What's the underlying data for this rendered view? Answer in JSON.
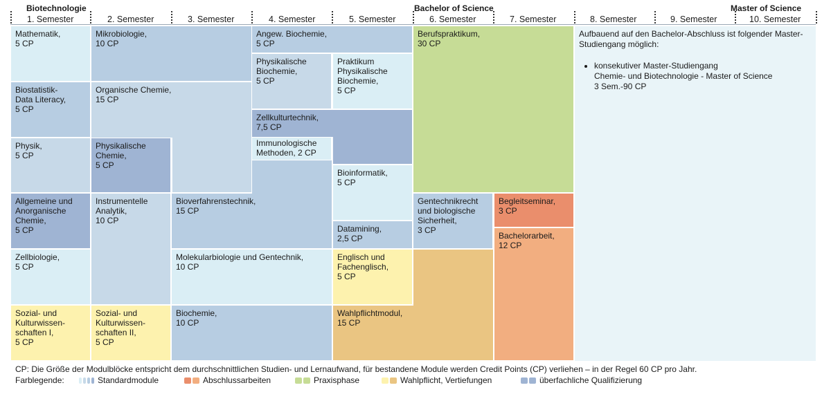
{
  "header": {
    "biotech": "Biotechnologie",
    "bachelor": "Bachelor of Science",
    "master": "Master of Science",
    "semesters": [
      "1. Semester",
      "2. Semester",
      "3. Semester",
      "4. Semester",
      "5. Semester",
      "6. Semester",
      "7. Semester",
      "8. Semester",
      "9. Semester",
      "10. Semester"
    ]
  },
  "colors": {
    "standard_light": "#daeef5",
    "standard_mid": "#c7d9e8",
    "standard_blue": "#b7cde2",
    "qualifizierung": "#9fb4d3",
    "abschluss_red": "#ea8e6c",
    "abschluss_orange": "#f2ae80",
    "praxis": "#c6dc96",
    "wahlpflicht": "#eac582",
    "sozial": "#fdf2ae"
  },
  "modules": {
    "mathematik": "Mathematik,\n5 CP",
    "mikrobiologie": "Mikrobiologie,\n10 CP",
    "angew_biochemie": "Angew. Biochemie,\n5 CP",
    "berufspraktikum": "Berufspraktikum,\n30 CP",
    "biostatistik": "Biostatistik-\nData Literacy,\n5 CP",
    "organische_chemie": "Organische Chemie,\n15 CP",
    "physik_biochemie": "Physikalische\nBiochemie,\n5 CP",
    "praktikum_physik_biochemie": "Praktikum\nPhysikalische\nBiochemie,\n5 CP",
    "zellkulturtechnik": "Zellkulturtechnik,\n7,5 CP",
    "immunologische_methoden": "Immunologische\nMethoden, 2 CP",
    "physik": "Physik,\n5 CP",
    "physik_chemie": "Physikalische\nChemie,\n5 CP",
    "bioinformatik": "Bioinformatik,\n5 CP",
    "allg_anorg_chemie": "Allgemeine und\nAnorganische\nChemie,\n5 CP",
    "instrumentelle_analytik": "Instrumentelle\nAnalytik,\n10 CP",
    "bioverfahrenstechnik": "Bioverfahrenstechnik,\n15 CP",
    "gentechnikrecht": "Gentechnikrecht\nund biologische\nSicherheit,\n3 CP",
    "begleitseminar": "Begleitseminar,\n3 CP",
    "datamining": "Datamining,\n2,5 CP",
    "bachelorarbeit": "Bachelorarbeit,\n12 CP",
    "zellbiologie": "Zellbiologie,\n5 CP",
    "molekularbiologie": "Molekularbiologie und Gentechnik,\n10 CP",
    "englisch": "Englisch und\nFachenglisch,\n5 CP",
    "sozial_1": "Sozial- und\nKulturwissen-\nschaften I,\n5 CP",
    "sozial_2": "Sozial- und\nKulturwissen-\nschaften II,\n5 CP",
    "biochemie": "Biochemie,\n10 CP",
    "wahlpflichtmodul": "Wahlpflichtmodul,\n15 CP"
  },
  "master_info": {
    "intro": "Aufbauend auf den Bachelor-Abschluss ist folgender Master-Studiengang möglich:",
    "bullet": "konsekutiver Master-Studiengang\nChemie- und Biotechnologie - Master of Science\n3 Sem.-90 CP"
  },
  "footnote": "CP: Die Größe der Modulblöcke entspricht dem durchschnittlichen Studien- und Lernaufwand, für bestandene Module werden Credit Points (CP) verliehen – in der Regel 60 CP pro Jahr.",
  "legend": {
    "label": "Farblegende:",
    "items": [
      {
        "text": "Standardmodule",
        "icon": "multi-blue-swatch"
      },
      {
        "text": "Abschlussarbeiten",
        "icon": "orange-swatch"
      },
      {
        "text": "Praxisphase",
        "icon": "green-swatch"
      },
      {
        "text": "Wahlpflicht, Vertiefungen",
        "icon": "yellow-orange-swatch"
      },
      {
        "text": "überfachliche Qualifizierung",
        "icon": "blue-swatch"
      }
    ]
  }
}
